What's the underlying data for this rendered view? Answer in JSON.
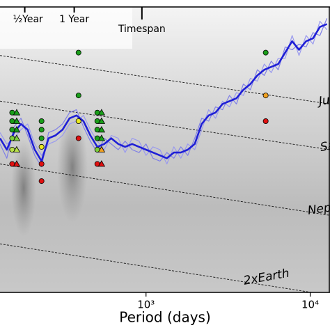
{
  "chart_data": {
    "type": "line",
    "xlabel": "Period (days)",
    "xscale": "log",
    "xlim": [
      129,
      13200
    ],
    "ylim": [
      0,
      100
    ],
    "xticks": [
      {
        "value": 1000,
        "label": "10³"
      },
      {
        "value": 10000,
        "label": "10⁴"
      }
    ],
    "top_ticks": [
      {
        "value": 182.6,
        "label": "½Year"
      },
      {
        "value": 365.25,
        "label": "1 Year"
      },
      {
        "value": 944,
        "label": "Timespan"
      }
    ],
    "x": [
      129,
      142,
      157,
      173,
      190,
      210,
      231,
      255,
      281,
      310,
      342,
      377,
      416,
      458,
      505,
      557,
      614,
      677,
      746,
      823,
      907,
      1000,
      1102,
      1216,
      1340,
      1477,
      1628,
      1795,
      1980,
      2182,
      2406,
      2652,
      2924,
      3224,
      3553,
      3917,
      4321,
      4762,
      5250,
      5790,
      6383,
      7036,
      7762,
      8551,
      9441,
      10400,
      11460,
      12640
    ],
    "series": [
      {
        "color": "#1f1fd6",
        "width": 2.6,
        "values": [
          54,
          50,
          56,
          59,
          57,
          50,
          46,
          54,
          55,
          57,
          61,
          62,
          60,
          55,
          51,
          52,
          54,
          52,
          51,
          52,
          51,
          50,
          49,
          48,
          47,
          49,
          49,
          50,
          52,
          59,
          62,
          63,
          66,
          67,
          68,
          71,
          73,
          76,
          78,
          79,
          80,
          84,
          88,
          85,
          88,
          89,
          93,
          94
        ]
      },
      {
        "color": "#7f7fe6",
        "width": 1.2,
        "values": [
          52,
          47,
          58,
          61,
          55,
          48,
          44,
          56,
          57,
          59,
          63,
          64,
          58,
          53,
          49,
          54,
          52,
          50,
          53,
          50,
          49,
          52,
          47,
          46,
          49,
          47,
          51,
          48,
          54,
          61,
          60,
          65,
          64,
          69,
          66,
          73,
          71,
          78,
          76,
          81,
          78,
          86,
          85,
          87,
          86,
          91,
          90,
          96
        ]
      },
      {
        "color": "#9a9aee",
        "width": 1.2,
        "values": [
          56,
          52,
          54,
          57,
          59,
          52,
          48,
          52,
          53,
          55,
          59,
          60,
          62,
          57,
          53,
          50,
          55,
          54,
          49,
          54,
          53,
          48,
          51,
          50,
          45,
          51,
          47,
          52,
          50,
          57,
          64,
          61,
          67,
          65,
          70,
          69,
          75,
          74,
          80,
          77,
          82,
          82,
          90,
          83,
          90,
          87,
          95,
          92
        ]
      }
    ],
    "lines": [
      {
        "label": "Ju",
        "x": [
          129,
          13200
        ],
        "values": [
          83,
          66
        ]
      },
      {
        "label": "Sa",
        "x": [
          129,
          13200
        ],
        "values": [
          67,
          50
        ]
      },
      {
        "label": "Nep",
        "x": [
          129,
          13200
        ],
        "values": [
          45,
          27
        ]
      },
      {
        "label": "2xEarth",
        "x": [
          129,
          13200
        ],
        "values": [
          17,
          -1
        ]
      }
    ],
    "points": [
      {
        "x": 153,
        "y": 63,
        "color": "#1a9e1a",
        "marker": "circle"
      },
      {
        "x": 153,
        "y": 60,
        "color": "#1a9e1a",
        "marker": "circle"
      },
      {
        "x": 153,
        "y": 57,
        "color": "#1a9e1a",
        "marker": "circle"
      },
      {
        "x": 153,
        "y": 54,
        "color": "#7ccf3c",
        "marker": "circle"
      },
      {
        "x": 153,
        "y": 50,
        "color": "#b8e04a",
        "marker": "circle"
      },
      {
        "x": 153,
        "y": 45,
        "color": "#e01010",
        "marker": "circle"
      },
      {
        "x": 163,
        "y": 63,
        "color": "#1a9e1a",
        "marker": "triangle"
      },
      {
        "x": 163,
        "y": 60,
        "color": "#1a9e1a",
        "marker": "triangle"
      },
      {
        "x": 163,
        "y": 57,
        "color": "#1a9e1a",
        "marker": "triangle"
      },
      {
        "x": 163,
        "y": 54,
        "color": "#7ccf3c",
        "marker": "triangle"
      },
      {
        "x": 163,
        "y": 50,
        "color": "#b8e04a",
        "marker": "triangle"
      },
      {
        "x": 163,
        "y": 45,
        "color": "#e01010",
        "marker": "triangle"
      },
      {
        "x": 231,
        "y": 60,
        "color": "#1a9e1a",
        "marker": "circle"
      },
      {
        "x": 231,
        "y": 57,
        "color": "#1a9e1a",
        "marker": "circle"
      },
      {
        "x": 231,
        "y": 54,
        "color": "#1a9e1a",
        "marker": "circle"
      },
      {
        "x": 231,
        "y": 51,
        "color": "#e8e820",
        "marker": "circle"
      },
      {
        "x": 231,
        "y": 45,
        "color": "#e01010",
        "marker": "circle"
      },
      {
        "x": 231,
        "y": 39,
        "color": "#e01010",
        "marker": "circle"
      },
      {
        "x": 388,
        "y": 84,
        "color": "#1a9e1a",
        "marker": "circle"
      },
      {
        "x": 388,
        "y": 69,
        "color": "#1a9e1a",
        "marker": "circle"
      },
      {
        "x": 388,
        "y": 60,
        "color": "#e8e820",
        "marker": "circle"
      },
      {
        "x": 388,
        "y": 54,
        "color": "#e01010",
        "marker": "circle"
      },
      {
        "x": 505,
        "y": 63,
        "color": "#1a9e1a",
        "marker": "circle"
      },
      {
        "x": 505,
        "y": 60,
        "color": "#1a9e1a",
        "marker": "circle"
      },
      {
        "x": 505,
        "y": 57,
        "color": "#1a9e1a",
        "marker": "circle"
      },
      {
        "x": 505,
        "y": 54,
        "color": "#1a9e1a",
        "marker": "circle"
      },
      {
        "x": 505,
        "y": 50,
        "color": "#7ccf3c",
        "marker": "circle"
      },
      {
        "x": 505,
        "y": 45,
        "color": "#e01010",
        "marker": "circle"
      },
      {
        "x": 536,
        "y": 63,
        "color": "#1a9e1a",
        "marker": "triangle"
      },
      {
        "x": 536,
        "y": 60,
        "color": "#1a9e1a",
        "marker": "triangle"
      },
      {
        "x": 536,
        "y": 57,
        "color": "#1a9e1a",
        "marker": "triangle"
      },
      {
        "x": 536,
        "y": 54,
        "color": "#1a9e1a",
        "marker": "triangle"
      },
      {
        "x": 536,
        "y": 50,
        "color": "#f0a020",
        "marker": "triangle"
      },
      {
        "x": 536,
        "y": 45,
        "color": "#e01010",
        "marker": "triangle"
      },
      {
        "x": 5358,
        "y": 84,
        "color": "#1a9e1a",
        "marker": "circle"
      },
      {
        "x": 5358,
        "y": 69,
        "color": "#f0a020",
        "marker": "circle"
      },
      {
        "x": 5358,
        "y": 60,
        "color": "#e01010",
        "marker": "circle"
      }
    ]
  }
}
